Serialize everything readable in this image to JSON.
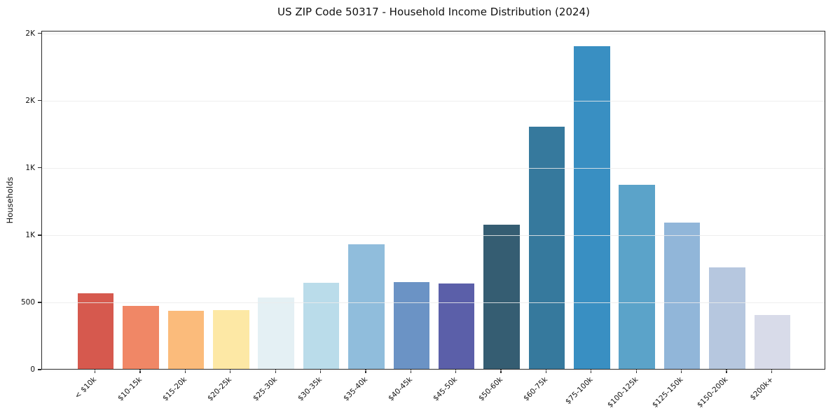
{
  "chart_data": {
    "type": "bar",
    "title": "US ZIP Code 50317 - Household Income Distribution (2024)",
    "xlabel": "",
    "ylabel": "Households",
    "categories": [
      "< $10k",
      "$10-15k",
      "$15-20k",
      "$20-25k",
      "$25-30k",
      "$30-35k",
      "$35-40k",
      "$40-45k",
      "$45-50k",
      "$50-60k",
      "$60-75k",
      "$75-100k",
      "$100-125k",
      "$125-150k",
      "$150-200k",
      "$200k+"
    ],
    "values": [
      560,
      470,
      430,
      435,
      530,
      640,
      925,
      645,
      635,
      1075,
      1800,
      2400,
      1370,
      1090,
      755,
      400
    ],
    "bar_colors": [
      "#d6594e",
      "#f08766",
      "#fbbb7b",
      "#fde8a5",
      "#e4f0f4",
      "#badcea",
      "#90bddc",
      "#6b93c5",
      "#5b5fa9",
      "#355d72",
      "#36799d",
      "#398fc2",
      "#5ba3c9",
      "#91b6d9",
      "#b6c7df",
      "#d8dbe9"
    ],
    "ylim": [
      0,
      2520
    ],
    "yticks": [
      {
        "value": 0,
        "label": "0"
      },
      {
        "value": 500,
        "label": "500"
      },
      {
        "value": 1000,
        "label": "1K"
      },
      {
        "value": 1500,
        "label": "1K"
      },
      {
        "value": 2000,
        "label": "2K"
      },
      {
        "value": 2500,
        "label": "2K"
      }
    ],
    "grid": "horizontal",
    "legend": "none",
    "axis_color": "#2a2a2a",
    "grid_color": "#ebebeb"
  }
}
